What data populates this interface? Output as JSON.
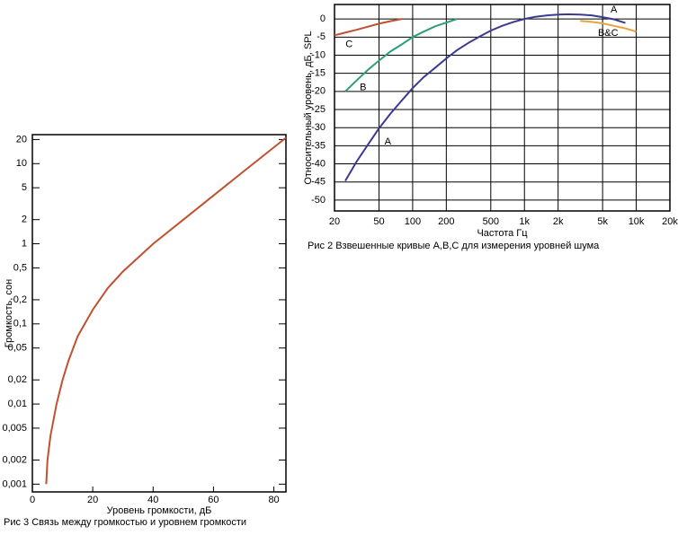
{
  "chart_data": [
    {
      "type": "line",
      "xlog": true,
      "ylog": false,
      "grid": true,
      "xlabel": "Частота Гц",
      "ylabel": "Относительный уровень, дБ, SPL",
      "caption": "Рис 2 Взвешенные кривые А,В,С для измерения уровней шума",
      "xlim": [
        20,
        20000
      ],
      "ylim": [
        -53,
        4
      ],
      "xticks": [
        20,
        50,
        100,
        200,
        500,
        {
          "value": 1000,
          "label": "1k"
        },
        {
          "value": 2000,
          "label": "2k"
        },
        {
          "value": 5000,
          "label": "5k"
        },
        {
          "value": 10000,
          "label": "10k"
        },
        {
          "value": 20000,
          "label": "20k"
        }
      ],
      "yticks": [
        0,
        -5,
        -10,
        -15,
        -20,
        -25,
        -30,
        -35,
        -40,
        -45,
        -50
      ],
      "series": [
        {
          "name": "A",
          "color": "#3a3a8e",
          "x": [
            25,
            31.5,
            40,
            50,
            63,
            80,
            100,
            125,
            160,
            200,
            250,
            315,
            400,
            500,
            630,
            800,
            1000,
            1250,
            1600,
            2000,
            2500,
            3150,
            4000,
            5000,
            6300,
            8000
          ],
          "values": [
            -44.7,
            -39.4,
            -34.6,
            -30.2,
            -26.2,
            -22.5,
            -19.1,
            -16.1,
            -13.4,
            -10.9,
            -8.6,
            -6.6,
            -4.8,
            -3.2,
            -1.9,
            -0.8,
            0,
            0.6,
            1,
            1.2,
            1.3,
            1.2,
            1,
            0.5,
            -0.1,
            -1.1
          ]
        },
        {
          "name": "B",
          "color": "#2b9e7a",
          "x": [
            25,
            31.5,
            40,
            50,
            63,
            80,
            100,
            125,
            160,
            200,
            250
          ],
          "values": [
            -20,
            -17,
            -14,
            -11.5,
            -9,
            -7,
            -5,
            -3.5,
            -2,
            -1,
            0
          ]
        },
        {
          "name": "C",
          "color": "#c05030",
          "x": [
            20,
            31.5,
            50,
            63,
            80
          ],
          "values": [
            -4.5,
            -3,
            -1.3,
            -0.6,
            0
          ]
        },
        {
          "name": "B&C",
          "color": "#e8a33c",
          "x": [
            3150,
            4000,
            5000,
            6300,
            8000,
            10000
          ],
          "values": [
            -0.5,
            -0.8,
            -1.2,
            -1.9,
            -2.6,
            -3.5
          ]
        }
      ],
      "annotations": [
        {
          "text": "A",
          "x": 60,
          "y": -34
        },
        {
          "text": "A",
          "x": 6300,
          "y": 2.5
        },
        {
          "text": "B",
          "x": 36,
          "y": -19
        },
        {
          "text": "C",
          "x": 27,
          "y": -7
        },
        {
          "text": "B&C",
          "x": 5600,
          "y": -4
        }
      ]
    },
    {
      "type": "line",
      "xlog": false,
      "ylog": true,
      "grid": false,
      "xlabel": "Уровень громкости, дБ",
      "ylabel": "Громкость, сон",
      "caption": "Рис 3 Связь между громкостью и уровнем громкости",
      "xlim": [
        0,
        84
      ],
      "ylim": [
        0.0008,
        23
      ],
      "xticks": [
        0,
        20,
        40,
        60,
        80
      ],
      "yticks": [
        20,
        10,
        5,
        2,
        1,
        {
          "value": 0.5,
          "label": "0,5"
        },
        {
          "value": 0.2,
          "label": "0,2"
        },
        {
          "value": 0.1,
          "label": "0,1"
        },
        {
          "value": 0.05,
          "label": "0,05"
        },
        {
          "value": 0.02,
          "label": "0,02"
        },
        {
          "value": 0.01,
          "label": "0,01"
        },
        {
          "value": 0.005,
          "label": "0,005"
        },
        {
          "value": 0.002,
          "label": "0,002"
        },
        {
          "value": 0.001,
          "label": "0,001"
        }
      ],
      "series": [
        {
          "color": "#c05030",
          "x": [
            4.6,
            5,
            6,
            8,
            10,
            12,
            15,
            20,
            25,
            30,
            40,
            50,
            60,
            70,
            80,
            84
          ],
          "values": [
            0.001,
            0.002,
            0.004,
            0.01,
            0.02,
            0.035,
            0.07,
            0.15,
            0.28,
            0.45,
            1,
            2,
            4,
            8,
            16,
            21
          ]
        }
      ]
    }
  ]
}
